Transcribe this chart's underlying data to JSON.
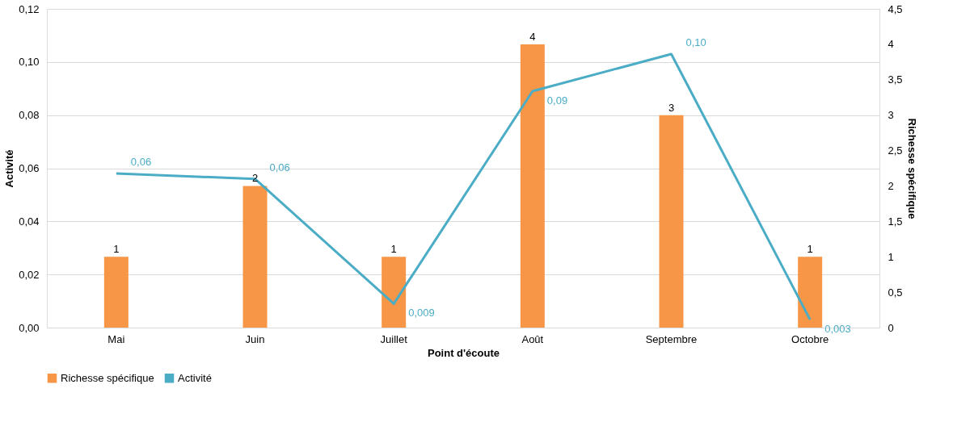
{
  "chart_data": {
    "type": "bar",
    "xlabel": "Point d'écoute",
    "ylabel": "Activité",
    "y2label": "Richesse spécifique",
    "categories": [
      "Mai",
      "Juin",
      "Juillet",
      "Août",
      "Septembre",
      "Octobre"
    ],
    "series": [
      {
        "name": "Richesse spécifique",
        "type": "bar",
        "axis": "y2",
        "color": "#f79646",
        "values": [
          1,
          2,
          1,
          4,
          3,
          1
        ],
        "value_labels": [
          "1",
          "2",
          "1",
          "4",
          "3",
          "1"
        ]
      },
      {
        "name": "Activité",
        "type": "line",
        "axis": "y",
        "color": "#4bacc6",
        "values": [
          0.058,
          0.056,
          0.009,
          0.089,
          0.103,
          0.003
        ],
        "value_labels": [
          "0,06",
          "0,06",
          "0,009",
          "0,09",
          "0,10",
          "0,003"
        ]
      }
    ],
    "ylim": [
      0,
      0.12
    ],
    "yticks": [
      {
        "value": 0,
        "label": "0,00"
      },
      {
        "value": 0.02,
        "label": "0,02"
      },
      {
        "value": 0.04,
        "label": "0,04"
      },
      {
        "value": 0.06,
        "label": "0,06"
      },
      {
        "value": 0.08,
        "label": "0,08"
      },
      {
        "value": 0.1,
        "label": "0,10"
      },
      {
        "value": 0.12,
        "label": "0,12"
      }
    ],
    "y2lim": [
      0,
      4.5
    ],
    "y2ticks": [
      0,
      {
        "value": 0.5,
        "label": "0,5"
      },
      1,
      {
        "value": 1.5,
        "label": "1,5"
      },
      2,
      {
        "value": 2.5,
        "label": "2,5"
      },
      3,
      {
        "value": 3.5,
        "label": "3,5"
      },
      4,
      {
        "value": 4.5,
        "label": "4,5"
      }
    ],
    "grid": "y",
    "legend": "bottom",
    "line_style": "solid",
    "marker": "none"
  }
}
